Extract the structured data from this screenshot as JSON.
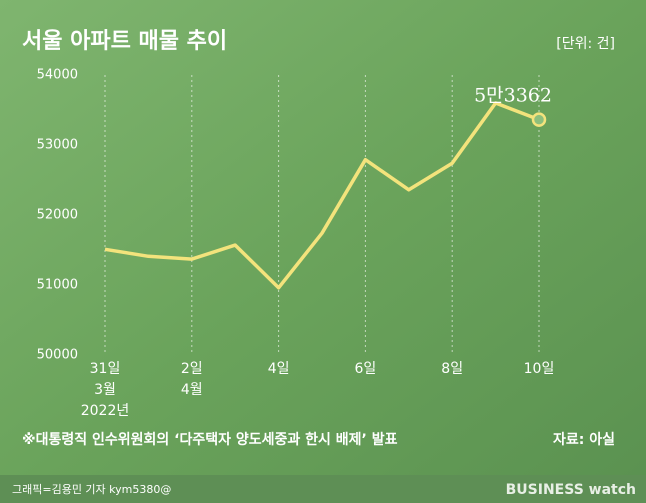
{
  "chart_data": {
    "type": "line",
    "title": "서울 아파트 매물 추이",
    "unit": "[단위: 건]",
    "categories": [
      "31일",
      null,
      "2일",
      null,
      "4일",
      null,
      "6일",
      null,
      "8일",
      null,
      "10일"
    ],
    "month_labels": [
      "3월",
      "4월"
    ],
    "year_label": "2022년",
    "series": [
      {
        "name": "매물",
        "color": "#f3e37c",
        "values": [
          51510,
          51410,
          51370,
          51570,
          50960,
          51740,
          52790,
          52360,
          52740,
          53600,
          53362
        ],
        "value_labels": [
          null,
          null,
          null,
          null,
          null,
          null,
          null,
          null,
          null,
          null,
          "5만3362"
        ]
      }
    ],
    "ylim": [
      50000,
      54000
    ],
    "yticks": [
      50000,
      51000,
      52000,
      53000,
      54000
    ],
    "grid": true,
    "note": "※대통령직 인수위원회의 ‘다주택자 양도세중과 한시 배제’ 발표",
    "source": "자료: 아실",
    "credit": "그래픽=김용민 기자 kym5380@",
    "brand": "BUSINESS watch"
  }
}
